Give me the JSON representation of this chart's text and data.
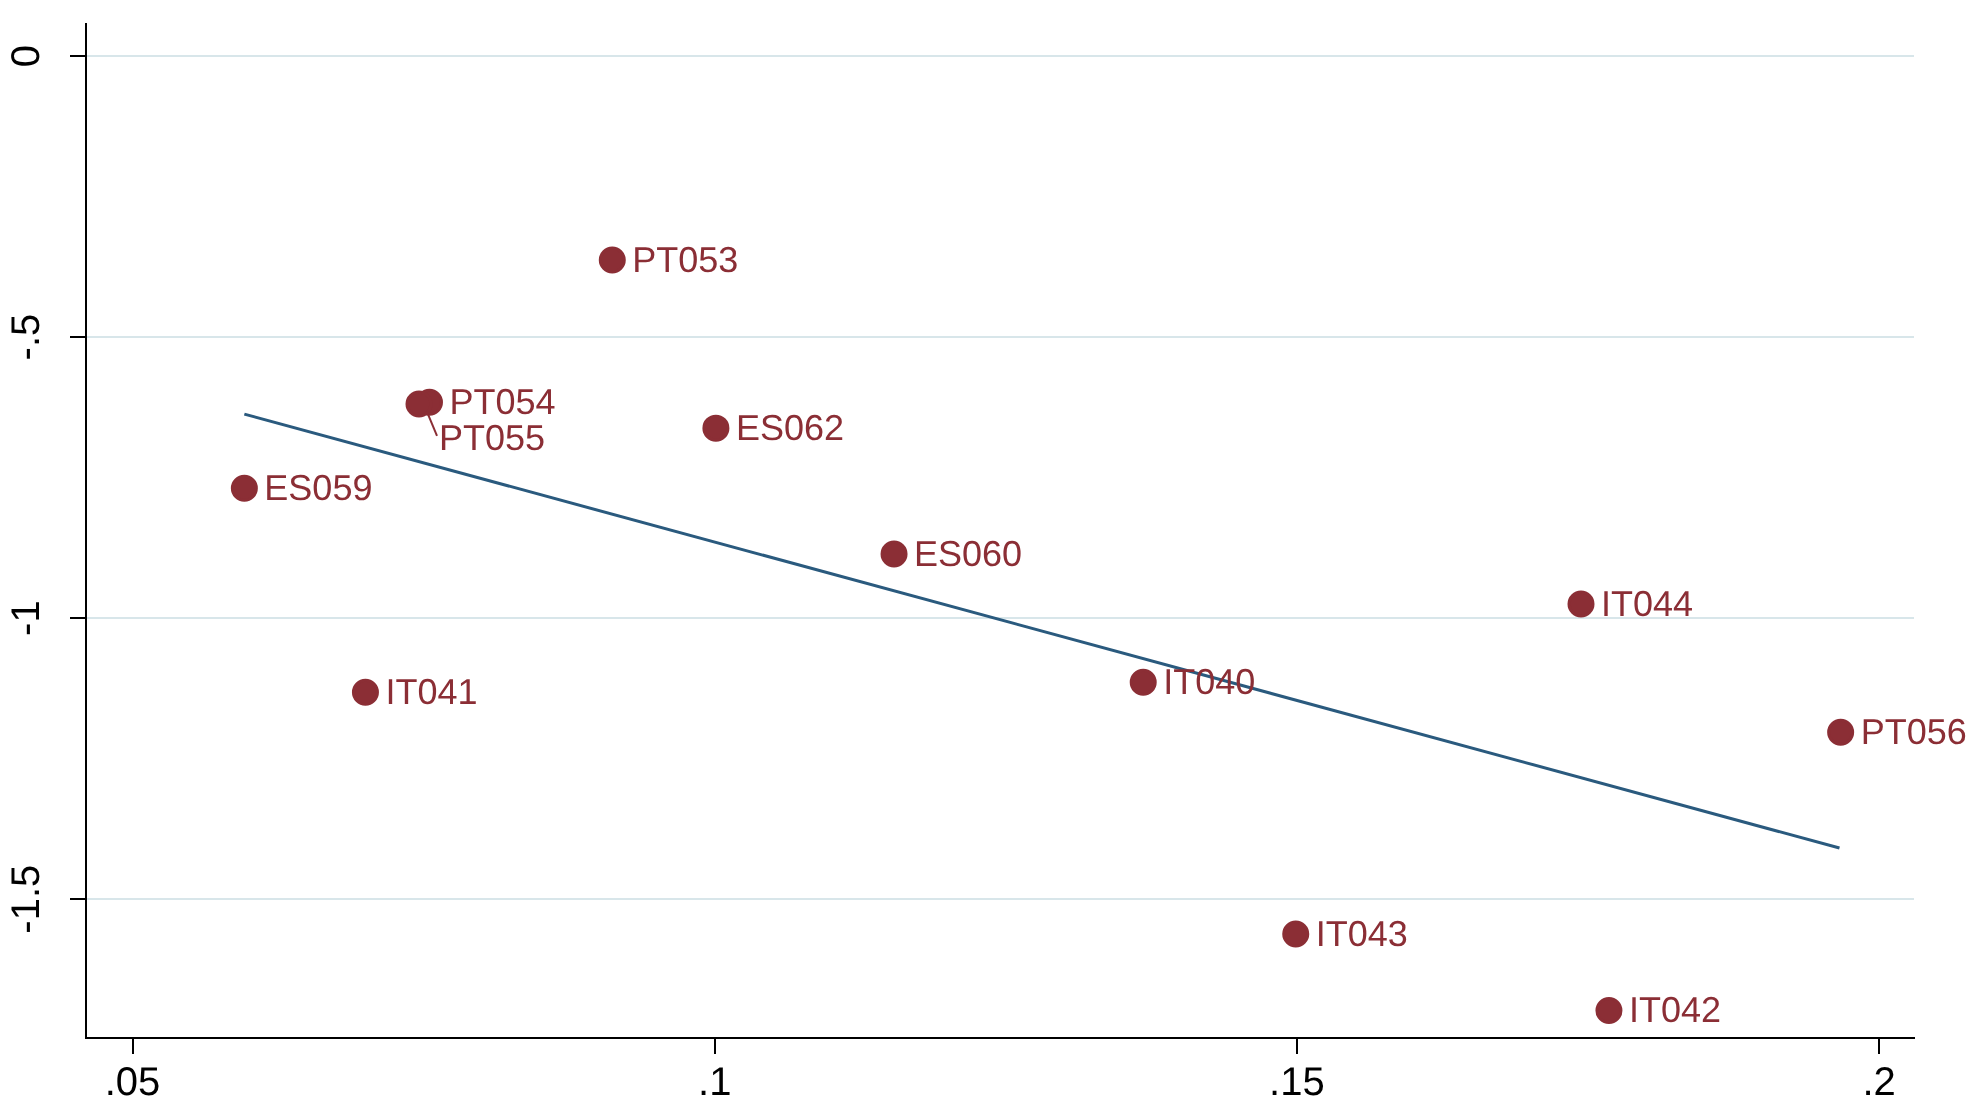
{
  "chart_data": {
    "type": "scatter",
    "xlim": [
      0.046,
      0.203
    ],
    "ylim": [
      -1.747,
      0.057
    ],
    "xticks": [
      {
        "value": 0.05,
        "label": ".05"
      },
      {
        "value": 0.1,
        "label": ".1"
      },
      {
        "value": 0.15,
        "label": ".15"
      },
      {
        "value": 0.2,
        "label": ".2"
      }
    ],
    "yticks": [
      0,
      {
        "value": -0.5,
        "label": "-.5"
      },
      -1,
      {
        "value": -1.5,
        "label": "-1.5"
      }
    ],
    "grid": "y",
    "legend": false,
    "marker": "circle",
    "series": [
      {
        "color": "#8b2e35",
        "x": [
          0.0912,
          0.0755,
          0.0746,
          0.1001,
          0.0596,
          0.1154,
          0.1744,
          0.07,
          0.1368,
          0.1967,
          0.1499,
          0.1768
        ],
        "values": [
          -0.363,
          -0.616,
          -0.619,
          -0.662,
          -0.769,
          -0.886,
          -0.975,
          -1.132,
          -1.114,
          -1.203,
          -1.562,
          -1.698
        ],
        "value_labels": [
          "PT053",
          "PT054",
          "PT055",
          "ES062",
          "ES059",
          "ES060",
          "IT044",
          "IT041",
          "IT040",
          "PT056",
          "IT043",
          "IT042"
        ]
      },
      {
        "type": "line",
        "color": "#2a5a7e",
        "x": [
          0.0596,
          0.1966
        ],
        "values": [
          -0.637,
          -1.409
        ],
        "marker": "none"
      }
    ]
  }
}
